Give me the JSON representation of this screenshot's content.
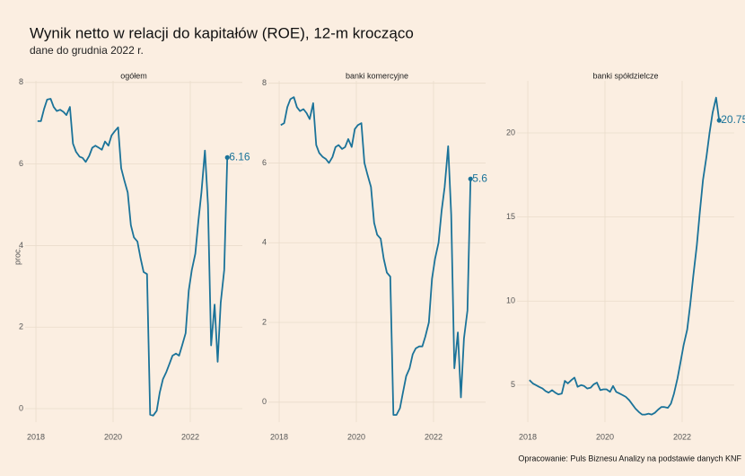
{
  "title": "Wynik netto w relacji do kapitałów (ROE), 12-m krocząco",
  "subtitle": "dane do grudnia 2022 r.",
  "ylabel": "proc.",
  "caption": "Opracowanie: Puls Biznesu Analizy na podstawie danych KNF",
  "chart_data": [
    {
      "type": "line",
      "title": "ogółem",
      "color": "#1b7399",
      "grid": true,
      "xlim": [
        2017.72,
        2023.35
      ],
      "xticks": [
        2018,
        2020,
        2022
      ],
      "ylim": [
        -0.33,
        8.04
      ],
      "yticks": [
        0,
        2,
        4,
        6,
        8
      ],
      "x": [
        2018.04,
        2018.13,
        2018.21,
        2018.29,
        2018.38,
        2018.46,
        2018.54,
        2018.63,
        2018.71,
        2018.79,
        2018.88,
        2018.96,
        2019.04,
        2019.13,
        2019.21,
        2019.29,
        2019.38,
        2019.46,
        2019.54,
        2019.63,
        2019.71,
        2019.79,
        2019.88,
        2019.96,
        2020.04,
        2020.13,
        2020.21,
        2020.29,
        2020.38,
        2020.46,
        2020.54,
        2020.63,
        2020.71,
        2020.79,
        2020.88,
        2020.96,
        2021.04,
        2021.13,
        2021.21,
        2021.29,
        2021.38,
        2021.46,
        2021.54,
        2021.63,
        2021.71,
        2021.79,
        2021.88,
        2021.96,
        2022.04,
        2022.13,
        2022.21,
        2022.29,
        2022.38,
        2022.46,
        2022.54,
        2022.63,
        2022.71,
        2022.79,
        2022.88,
        2022.96
      ],
      "values": [
        7.05,
        7.05,
        7.35,
        7.58,
        7.6,
        7.4,
        7.3,
        7.33,
        7.28,
        7.2,
        7.4,
        6.5,
        6.3,
        6.18,
        6.15,
        6.05,
        6.2,
        6.4,
        6.45,
        6.4,
        6.35,
        6.55,
        6.45,
        6.7,
        6.8,
        6.9,
        5.9,
        5.6,
        5.3,
        4.5,
        4.2,
        4.1,
        3.7,
        3.35,
        3.3,
        -0.15,
        -0.17,
        -0.05,
        0.4,
        0.72,
        0.9,
        1.1,
        1.3,
        1.35,
        1.3,
        1.55,
        1.85,
        2.9,
        3.4,
        3.8,
        4.6,
        5.3,
        6.33,
        5.0,
        1.55,
        2.55,
        1.15,
        2.6,
        3.4,
        6.16
      ]
    },
    {
      "type": "line",
      "title": "banki komercyjne",
      "color": "#1b7399",
      "grid": true,
      "xlim": [
        2017.72,
        2023.35
      ],
      "xticks": [
        2018,
        2020,
        2022
      ],
      "ylim": [
        -0.5,
        8.06
      ],
      "yticks": [
        0,
        2,
        4,
        6,
        8
      ],
      "x": [
        2018.04,
        2018.13,
        2018.21,
        2018.29,
        2018.38,
        2018.46,
        2018.54,
        2018.63,
        2018.71,
        2018.79,
        2018.88,
        2018.96,
        2019.04,
        2019.13,
        2019.21,
        2019.29,
        2019.38,
        2019.46,
        2019.54,
        2019.63,
        2019.71,
        2019.79,
        2019.88,
        2019.96,
        2020.04,
        2020.13,
        2020.21,
        2020.29,
        2020.38,
        2020.46,
        2020.54,
        2020.63,
        2020.71,
        2020.79,
        2020.88,
        2020.96,
        2021.04,
        2021.13,
        2021.21,
        2021.29,
        2021.38,
        2021.46,
        2021.54,
        2021.63,
        2021.71,
        2021.79,
        2021.88,
        2021.96,
        2022.04,
        2022.13,
        2022.21,
        2022.29,
        2022.38,
        2022.46,
        2022.54,
        2022.63,
        2022.71,
        2022.79,
        2022.88,
        2022.96
      ],
      "values": [
        6.95,
        7.0,
        7.4,
        7.6,
        7.65,
        7.4,
        7.3,
        7.35,
        7.25,
        7.1,
        7.5,
        6.45,
        6.25,
        6.15,
        6.1,
        6.0,
        6.15,
        6.4,
        6.45,
        6.35,
        6.4,
        6.6,
        6.4,
        6.85,
        6.95,
        7.0,
        6.0,
        5.7,
        5.4,
        4.5,
        4.2,
        4.1,
        3.6,
        3.25,
        3.15,
        -0.32,
        -0.32,
        -0.15,
        0.25,
        0.65,
        0.85,
        1.2,
        1.35,
        1.4,
        1.4,
        1.65,
        2.0,
        3.1,
        3.6,
        4.0,
        4.8,
        5.4,
        6.42,
        4.7,
        0.85,
        1.75,
        0.12,
        1.6,
        2.3,
        5.6
      ]
    },
    {
      "type": "line",
      "title": "banki spółdzielcze",
      "color": "#1b7399",
      "grid": true,
      "xlim": [
        2017.72,
        2023.35
      ],
      "xticks": [
        2018,
        2020,
        2022
      ],
      "ylim": [
        2.8,
        23.1
      ],
      "yticks": [
        5,
        10,
        15,
        20
      ],
      "x": [
        2018.04,
        2018.13,
        2018.21,
        2018.29,
        2018.38,
        2018.46,
        2018.54,
        2018.63,
        2018.71,
        2018.79,
        2018.88,
        2018.96,
        2019.04,
        2019.13,
        2019.21,
        2019.29,
        2019.38,
        2019.46,
        2019.54,
        2019.63,
        2019.71,
        2019.79,
        2019.88,
        2019.96,
        2020.04,
        2020.13,
        2020.21,
        2020.29,
        2020.38,
        2020.46,
        2020.54,
        2020.63,
        2020.71,
        2020.79,
        2020.88,
        2020.96,
        2021.04,
        2021.13,
        2021.21,
        2021.29,
        2021.38,
        2021.46,
        2021.54,
        2021.63,
        2021.71,
        2021.79,
        2021.88,
        2021.96,
        2022.04,
        2022.13,
        2022.21,
        2022.29,
        2022.38,
        2022.46,
        2022.54,
        2022.63,
        2022.71,
        2022.79,
        2022.88,
        2022.96
      ],
      "values": [
        5.3,
        5.1,
        5.0,
        4.9,
        4.8,
        4.65,
        4.55,
        4.7,
        4.55,
        4.45,
        4.5,
        5.25,
        5.1,
        5.3,
        5.45,
        4.9,
        5.0,
        4.95,
        4.8,
        4.85,
        5.05,
        5.15,
        4.7,
        4.75,
        4.75,
        4.6,
        4.95,
        4.6,
        4.5,
        4.4,
        4.3,
        4.1,
        3.85,
        3.6,
        3.4,
        3.25,
        3.25,
        3.3,
        3.25,
        3.35,
        3.55,
        3.7,
        3.7,
        3.65,
        3.9,
        4.5,
        5.4,
        6.4,
        7.4,
        8.3,
        9.8,
        11.5,
        13.3,
        15.3,
        17.2,
        18.6,
        20.0,
        21.2,
        22.1,
        20.75
      ]
    }
  ]
}
